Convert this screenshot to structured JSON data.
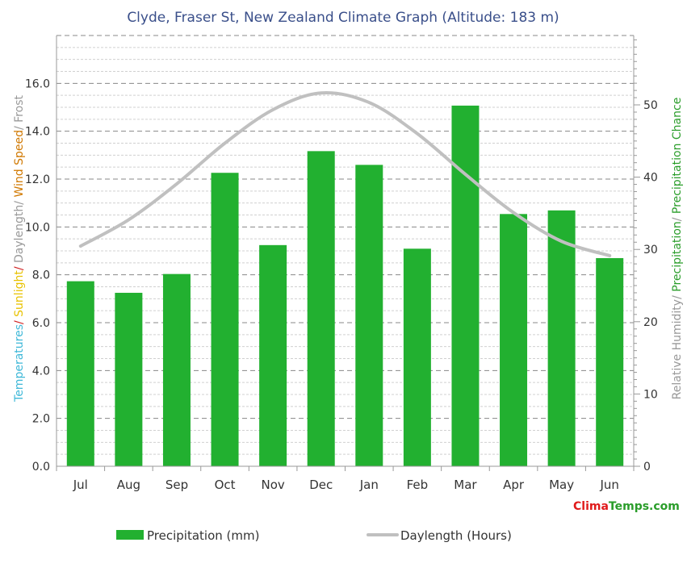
{
  "chart_data": {
    "type": "bar",
    "title": "Clyde, Fraser St, New Zealand Climate Graph (Altitude: 183 m)",
    "categories": [
      "Jul",
      "Aug",
      "Sep",
      "Oct",
      "Nov",
      "Dec",
      "Jan",
      "Feb",
      "Mar",
      "Apr",
      "May",
      "Jun"
    ],
    "left_axis": {
      "label_parts": [
        {
          "text": "Temperatures",
          "color": "#3fb8d8"
        },
        {
          "text": "/ ",
          "color": "#d02020"
        },
        {
          "text": "Sunlight",
          "color": "#e8c200"
        },
        {
          "text": "/ ",
          "color": "#d02020"
        },
        {
          "text": "Daylength",
          "color": "#999999"
        },
        {
          "text": "/ ",
          "color": "#999999"
        },
        {
          "text": "Wind Speed",
          "color": "#d07800"
        },
        {
          "text": "/ Frost",
          "color": "#999999"
        }
      ],
      "ylim": [
        0,
        18
      ],
      "ticks": [
        "0.0",
        "2.0",
        "4.0",
        "6.0",
        "8.0",
        "10.0",
        "12.0",
        "14.0",
        "16.0"
      ]
    },
    "right_axis": {
      "label_parts": [
        {
          "text": "Relative Humidity",
          "color": "#999999"
        },
        {
          "text": "/ ",
          "color": "#999999"
        },
        {
          "text": "Precipitation",
          "color": "#2a9d2a"
        },
        {
          "text": "/ ",
          "color": "#999999"
        },
        {
          "text": "Precipitation Chance",
          "color": "#2a9d2a"
        }
      ],
      "ylim": [
        0,
        59.6
      ],
      "ticks": [
        "0",
        "10",
        "20",
        "30",
        "40",
        "50"
      ]
    },
    "series": [
      {
        "name": "Precipitation (mm)",
        "type": "bar",
        "axis": "right",
        "color": "#22b030",
        "values": [
          25.6,
          24.0,
          26.6,
          40.6,
          30.6,
          43.6,
          41.7,
          30.1,
          49.9,
          34.9,
          35.4,
          28.8
        ]
      },
      {
        "name": "Daylength (Hours)",
        "type": "line",
        "axis": "left",
        "color": "#c0c0c0",
        "values": [
          9.2,
          10.3,
          11.8,
          13.5,
          14.9,
          15.6,
          15.2,
          13.9,
          12.2,
          10.6,
          9.4,
          8.8
        ]
      }
    ],
    "grid": true
  },
  "brand": {
    "part1": "Clima",
    "part2": "Temps.com"
  }
}
